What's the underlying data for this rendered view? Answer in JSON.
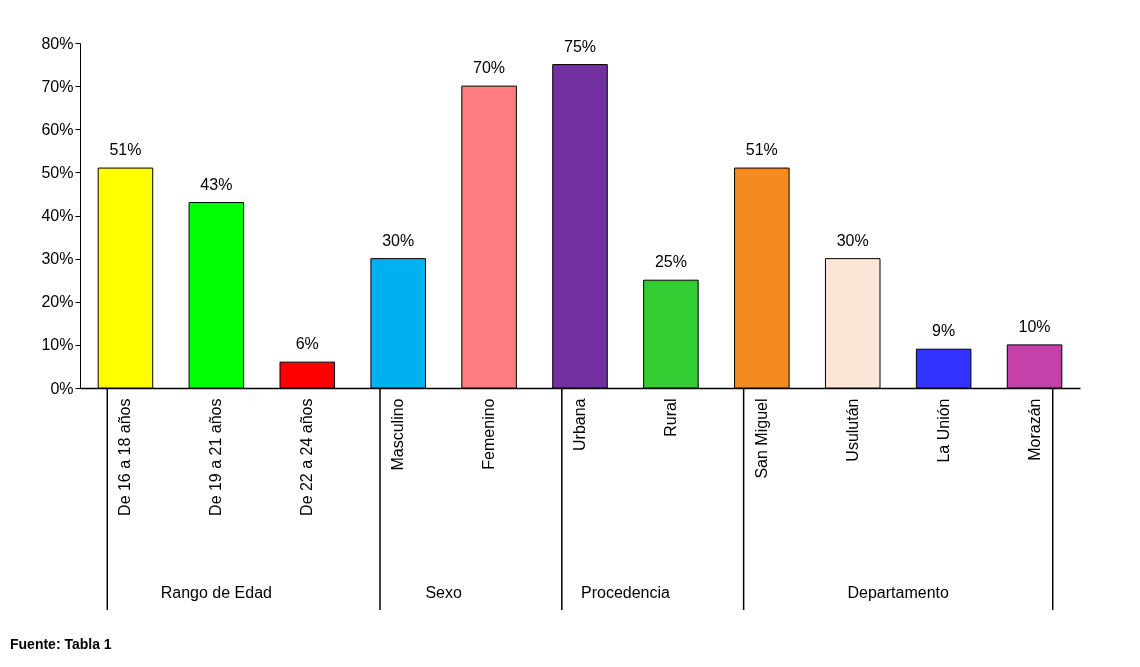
{
  "chart_data": {
    "type": "bar",
    "categories": [
      "De 16 a 18 años",
      "De 19 a 21 años",
      "De 22 a 24 años",
      "Masculino",
      "Femenino",
      "Urbana",
      "Rural",
      "San Miguel",
      "Usulután",
      "La Unión",
      "Morazán"
    ],
    "values": [
      51,
      43,
      6,
      30,
      70,
      75,
      25,
      51,
      30,
      9,
      10
    ],
    "colors": [
      "#ffff00",
      "#00ff00",
      "#ff0000",
      "#00b0f0",
      "#ff7c80",
      "#7030a0",
      "#33cc33",
      "#f58a1f",
      "#fbe5d6",
      "#3333ff",
      "#c540a8"
    ],
    "value_labels": [
      "51%",
      "43%",
      "6%",
      "30%",
      "70%",
      "75%",
      "25%",
      "51%",
      "30%",
      "9%",
      "10%"
    ],
    "ylim": [
      0,
      80
    ],
    "yticks": [
      {
        "value": 0,
        "label": "0%"
      },
      {
        "value": 10,
        "label": "10%"
      },
      {
        "value": 20,
        "label": "20%"
      },
      {
        "value": 30,
        "label": "30%"
      },
      {
        "value": 40,
        "label": "40%"
      },
      {
        "value": 50,
        "label": "50%"
      },
      {
        "value": 60,
        "label": "60%"
      },
      {
        "value": 70,
        "label": "70%"
      },
      {
        "value": 80,
        "label": "80%"
      }
    ],
    "grid": false,
    "annotations": [
      "Rango de Edad",
      "Sexo",
      "Procedencia",
      "Departamento",
      "Fuente: Tabla 1"
    ]
  }
}
